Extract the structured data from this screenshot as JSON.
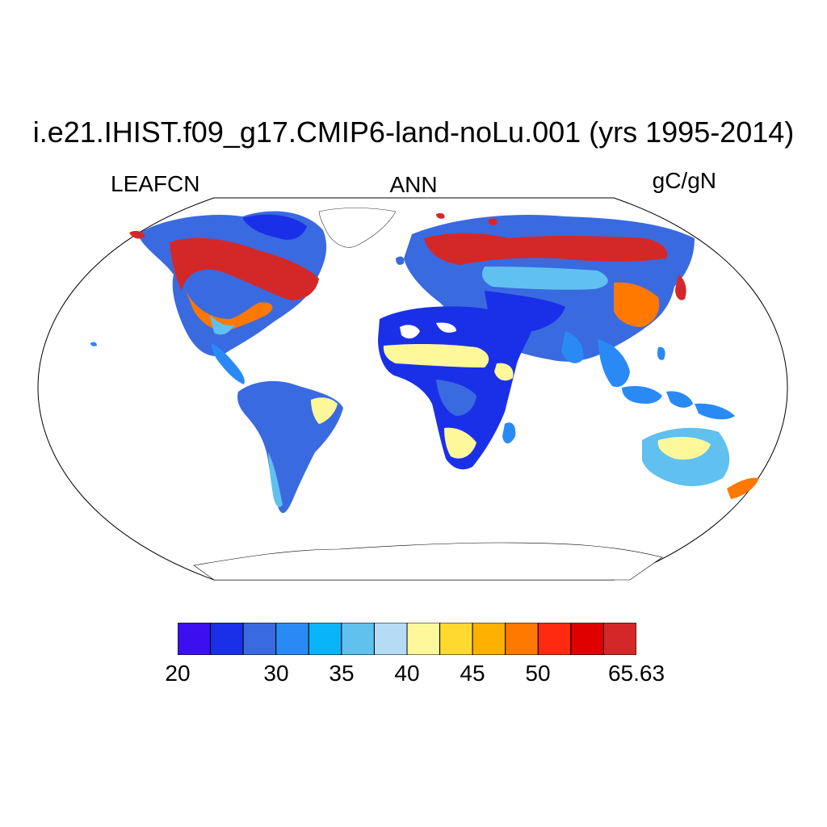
{
  "title": "i.e21.IHIST.f09_g17.CMIP6-land-noLu.001 (yrs 1995-2014)",
  "variable": "LEAFCN",
  "season": "ANN",
  "units": "gC/gN",
  "colorbar": {
    "colors": [
      "#3b0ff0",
      "#1a30e8",
      "#3a6ae0",
      "#2a8af5",
      "#0ab4f8",
      "#60c0f0",
      "#b4dcf5",
      "#fff89a",
      "#ffd830",
      "#ffb000",
      "#ff7800",
      "#ff2a10",
      "#e00000",
      "#d42828"
    ],
    "labels": [
      "20",
      "30",
      "35",
      "40",
      "45",
      "50",
      "65.63"
    ]
  }
}
